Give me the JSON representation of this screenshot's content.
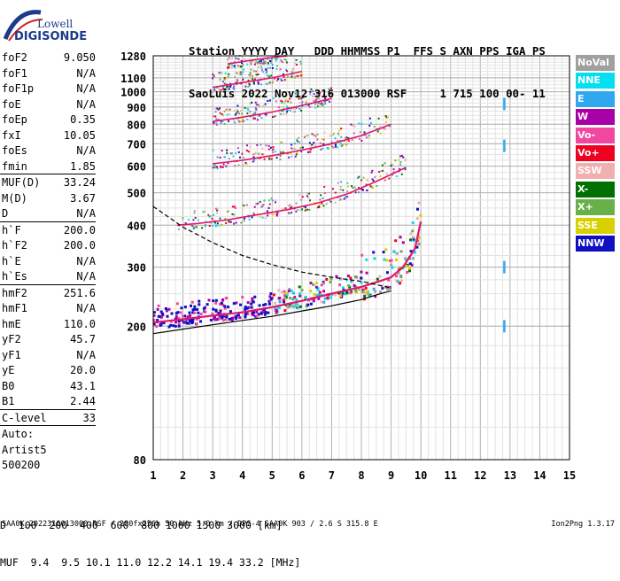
{
  "logo": {
    "line1": "Lowell",
    "line2": "DIGISONDE"
  },
  "header": {
    "line1": "Station YYYY DAY   DDD HHMMSS P1  FFS S AXN PPS IGA PS",
    "line2": "SaoLuis 2022 Nov12 316 013000 RSF     1 715 100 00- 11"
  },
  "parameter_groups": [
    [
      {
        "name": "foF2",
        "value": "9.050"
      },
      {
        "name": "foF1",
        "value": "N/A"
      },
      {
        "name": "foF1p",
        "value": "N/A"
      },
      {
        "name": "foE",
        "value": "N/A"
      },
      {
        "name": "foEp",
        "value": "0.35"
      },
      {
        "name": "fxI",
        "value": "10.05"
      },
      {
        "name": "foEs",
        "value": "N/A"
      },
      {
        "name": "fmin",
        "value": "1.85"
      }
    ],
    [
      {
        "name": "MUF(D)",
        "value": "33.24"
      },
      {
        "name": "M(D)",
        "value": "3.67"
      },
      {
        "name": "D",
        "value": "N/A"
      }
    ],
    [
      {
        "name": "h`F",
        "value": "200.0"
      },
      {
        "name": "h`F2",
        "value": "200.0"
      },
      {
        "name": "h`E",
        "value": "N/A"
      },
      {
        "name": "h`Es",
        "value": "N/A"
      }
    ],
    [
      {
        "name": "hmF2",
        "value": "251.6"
      },
      {
        "name": "hmF1",
        "value": "N/A"
      },
      {
        "name": "hmE",
        "value": "110.0"
      },
      {
        "name": "yF2",
        "value": "45.7"
      },
      {
        "name": "yF1",
        "value": "N/A"
      },
      {
        "name": "yE",
        "value": "20.0"
      },
      {
        "name": "B0",
        "value": "43.1"
      },
      {
        "name": "B1",
        "value": "2.44"
      }
    ],
    [
      {
        "name": "C-level",
        "value": "33"
      }
    ]
  ],
  "auto": {
    "line1": "Auto:",
    "line2": "Artist5",
    "line3": "500200"
  },
  "legend": [
    {
      "label": "NoVal",
      "color": "#a0a0a0"
    },
    {
      "label": "NNE",
      "color": "#00e0f0"
    },
    {
      "label": "E",
      "color": "#30a8f0"
    },
    {
      "label": "W",
      "color": "#a800a8"
    },
    {
      "label": "Vo-",
      "color": "#f048a0"
    },
    {
      "label": "Vo+",
      "color": "#f00020"
    },
    {
      "label": "SSW",
      "color": "#f0b0b0"
    },
    {
      "label": "X-",
      "color": "#007000"
    },
    {
      "label": "X+",
      "color": "#68b048"
    },
    {
      "label": "SSE",
      "color": "#d8d000"
    },
    {
      "label": "NNW",
      "color": "#1010c0"
    }
  ],
  "footer": {
    "d_label": "D",
    "d_values": "  100  200  400  600  800 1000 1500 3000 [km]",
    "muf_label": "MUF",
    "muf_values": "  9.4  9.5 10.1 11.0 12.2 14.1 19.4 33.2 [MHz]",
    "file_line": "SAA0K_2022316013000.RSF / 280fx256h 50 kHz 5.0 km / DPS-4 SAA0K 903 / 2.6 S 315.8 E",
    "version": "Ion2Png 1.3.17"
  },
  "chart_data": {
    "type": "scatter",
    "xlim": [
      1,
      15
    ],
    "ylim": [
      80,
      1280
    ],
    "xticks": [
      1,
      2,
      3,
      4,
      5,
      6,
      7,
      8,
      9,
      10,
      11,
      12,
      13,
      14,
      15
    ],
    "yticks": [
      80,
      200,
      300,
      400,
      500,
      600,
      700,
      800,
      900,
      1000,
      1100,
      1280
    ],
    "grid": true,
    "y_scale": "log",
    "traces": [
      {
        "name": "O-trace F2 1st hop",
        "x": [
          1.0,
          2.0,
          3.0,
          4.0,
          5.0,
          6.0,
          7.0,
          8.0,
          8.6,
          9.0,
          9.4,
          9.8,
          10.0
        ],
        "y": [
          205,
          210,
          215,
          220,
          228,
          238,
          250,
          262,
          272,
          280,
          300,
          340,
          410
        ]
      },
      {
        "name": "2nd hop",
        "x": [
          1.8,
          2.5,
          3.5,
          4.5,
          5.5,
          6.5,
          7.5,
          8.5,
          9.5
        ],
        "y": [
          400,
          405,
          415,
          430,
          445,
          465,
          495,
          540,
          595
        ]
      },
      {
        "name": "3rd hop",
        "x": [
          3.0,
          4.0,
          5.0,
          6.0,
          7.0,
          8.0,
          9.0
        ],
        "y": [
          610,
          625,
          645,
          670,
          700,
          740,
          800
        ]
      },
      {
        "name": "4th hop",
        "x": [
          3.0,
          4.0,
          5.0,
          6.0,
          7.0
        ],
        "y": [
          815,
          840,
          870,
          910,
          955
        ]
      },
      {
        "name": "5th hop",
        "x": [
          3.0,
          4.0,
          5.0,
          6.0
        ],
        "y": [
          1030,
          1065,
          1100,
          1150
        ]
      },
      {
        "name": "6th hop",
        "x": [
          3.5,
          4.5,
          5.5
        ],
        "y": [
          1210,
          1250,
          1280
        ]
      }
    ],
    "profile": {
      "dashed": {
        "x": [
          1.0,
          2.0,
          3.0,
          4.0,
          5.0,
          6.0,
          7.0,
          8.0,
          8.5,
          9.0
        ],
        "y": [
          455,
          395,
          355,
          325,
          305,
          290,
          280,
          272,
          266,
          260
        ]
      },
      "solid": {
        "x": [
          1.0,
          2.0,
          3.0,
          4.0,
          5.0,
          6.0,
          7.0,
          8.0,
          8.5,
          9.0
        ],
        "y": [
          190,
          196,
          202,
          208,
          214,
          222,
          230,
          240,
          248,
          255
        ]
      }
    },
    "markers": [
      {
        "x": 12.8,
        "y": 920,
        "color": "#30a8f0"
      },
      {
        "x": 12.8,
        "y": 690,
        "color": "#30a8f0"
      },
      {
        "x": 12.8,
        "y": 300,
        "color": "#30a8f0"
      },
      {
        "x": 12.8,
        "y": 200,
        "color": "#30a8f0"
      }
    ]
  }
}
